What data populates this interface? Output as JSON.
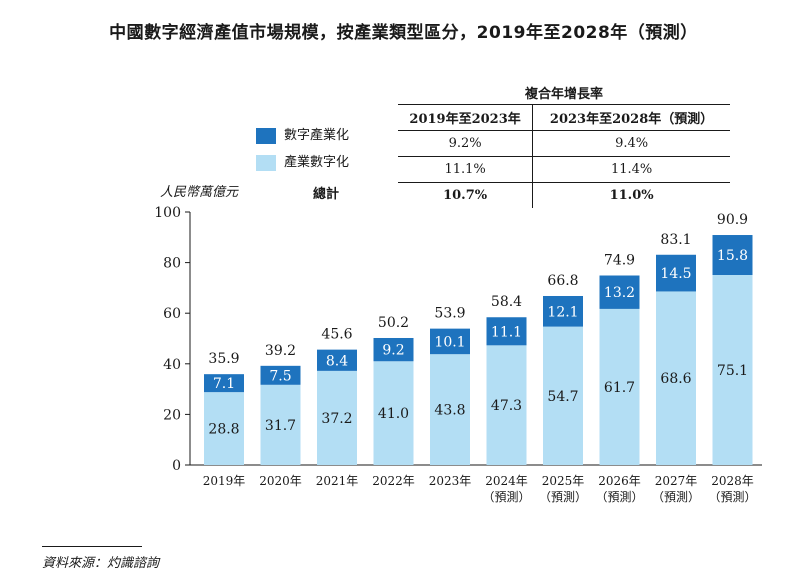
{
  "title": "中國數字經濟產值市場規模，按產業類型區分，2019年至2028年（預測）",
  "legend": [
    {
      "label": "數字產業化",
      "color": "#1e73be"
    },
    {
      "label": "產業數字化",
      "color": "#b3def4"
    }
  ],
  "unit": "人民幣萬億元",
  "cagr": {
    "header": "複合年增長率",
    "col1": "2019年至2023年",
    "col2": "2023年至2028年（預測）",
    "rows": [
      {
        "label": "",
        "v1": "9.2%",
        "v2": "9.4%"
      },
      {
        "label": "",
        "v1": "11.1%",
        "v2": "11.4%"
      },
      {
        "label": "總計",
        "v1": "10.7%",
        "v2": "11.0%"
      }
    ]
  },
  "chart_data": {
    "type": "bar",
    "stacked": true,
    "categories": [
      "2019年",
      "2020年",
      "2021年",
      "2022年",
      "2023年",
      "2024年",
      "2025年",
      "2026年",
      "2027年",
      "2028年"
    ],
    "category_notes": [
      "",
      "",
      "",
      "",
      "",
      "（預測）",
      "（預測）",
      "（預測）",
      "（預測）",
      "（預測）"
    ],
    "series": [
      {
        "name": "產業數字化",
        "color": "#b3def4",
        "values": [
          28.8,
          31.7,
          37.2,
          41.0,
          43.8,
          47.3,
          54.7,
          61.7,
          68.6,
          75.1
        ]
      },
      {
        "name": "數字產業化",
        "color": "#1e73be",
        "values": [
          7.1,
          7.5,
          8.4,
          9.2,
          10.1,
          11.1,
          12.1,
          13.2,
          14.5,
          15.8
        ]
      }
    ],
    "totals": [
      35.9,
      39.2,
      45.6,
      50.2,
      53.9,
      58.4,
      66.8,
      74.9,
      83.1,
      90.9
    ],
    "value_labels": {
      "bottom": [
        "28.8",
        "31.7",
        "37.2",
        "41.0",
        "43.8",
        "47.3",
        "54.7",
        "61.7",
        "68.6",
        "75.1"
      ],
      "top": [
        "7.1",
        "7.5",
        "8.4",
        "9.2",
        "10.1",
        "11.1",
        "12.1",
        "13.2",
        "14.5",
        "15.8"
      ],
      "totals": [
        "35.9",
        "39.2",
        "45.6",
        "50.2",
        "53.9",
        "58.4",
        "66.8",
        "74.9",
        "83.1",
        "90.9"
      ]
    },
    "yticks": [
      0,
      20,
      40,
      60,
      80,
      100
    ],
    "ylim": [
      0,
      100
    ],
    "ylabel": "人民幣萬億元"
  },
  "source": "資料來源：灼識諮詢"
}
